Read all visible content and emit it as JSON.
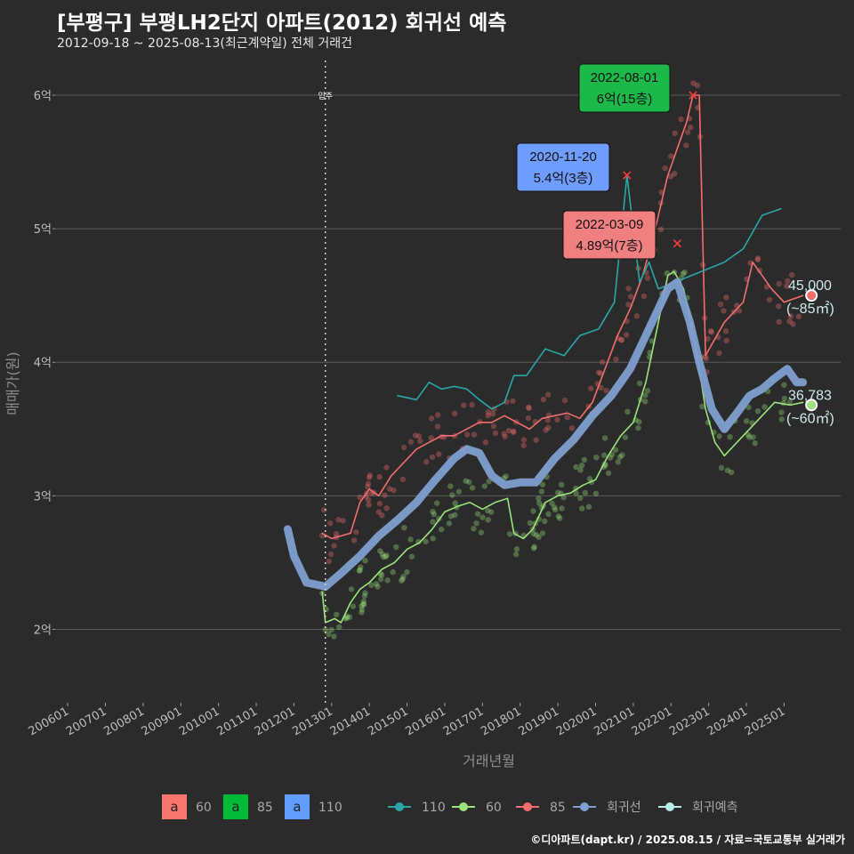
{
  "header": {
    "title": "[부평구] 부평LH2단지 아파트(2012) 회귀선 예측",
    "subtitle": "2012-09-18 ~ 2025-08-13(최근계약일) 전체 거래건"
  },
  "footer": "©디아파트(dapt.kr) / 2025.08.15 / 자료=국토교통부 실거래가",
  "colors": {
    "background": "#2b2b2b",
    "grid": "#5a5a5a",
    "s60": "#9be37a",
    "s85": "#f46d6d",
    "s110": "#2aa6a8",
    "regression": "#7f9fd0",
    "forecast": "#b6ede8",
    "callout85": "#f08080",
    "callout60": "#1db84a",
    "callout110": "#6e9dff"
  },
  "chart_data": {
    "type": "line",
    "xlabel": "거래년월",
    "ylabel": "매매가(원)",
    "x_range": [
      "2005-09",
      "2026-07"
    ],
    "ylim": [
      1.45,
      6.3
    ],
    "y_unit": "억",
    "y_ticks": [
      {
        "value": 2,
        "label": "2억"
      },
      {
        "value": 3,
        "label": "3억"
      },
      {
        "value": 4,
        "label": "4억"
      },
      {
        "value": 5,
        "label": "5억"
      },
      {
        "value": 6,
        "label": "6억"
      }
    ],
    "x_ticks": [
      {
        "value": "2006-01",
        "label": "200601"
      },
      {
        "value": "2007-01",
        "label": "200701"
      },
      {
        "value": "2008-01",
        "label": "200801"
      },
      {
        "value": "2009-01",
        "label": "200901"
      },
      {
        "value": "2010-01",
        "label": "201001"
      },
      {
        "value": "2011-01",
        "label": "201101"
      },
      {
        "value": "2012-01",
        "label": "201201"
      },
      {
        "value": "2013-01",
        "label": "201301"
      },
      {
        "value": "2014-01",
        "label": "201401"
      },
      {
        "value": "2015-01",
        "label": "201501"
      },
      {
        "value": "2016-01",
        "label": "201601"
      },
      {
        "value": "2017-01",
        "label": "201701"
      },
      {
        "value": "2018-01",
        "label": "201801"
      },
      {
        "value": "2019-01",
        "label": "201901"
      },
      {
        "value": "2020-01",
        "label": "202001"
      },
      {
        "value": "2021-01",
        "label": "202101"
      },
      {
        "value": "2022-01",
        "label": "202201"
      },
      {
        "value": "2023-01",
        "label": "202301"
      },
      {
        "value": "2024-01",
        "label": "202401"
      },
      {
        "value": "2025-01",
        "label": "202501"
      }
    ],
    "vline": {
      "x": "2012-11",
      "label": "입주"
    },
    "series": [
      {
        "name": "60",
        "points": [
          [
            "2012-10",
            2.28
          ],
          [
            "2012-11",
            2.05
          ],
          [
            "2013-02",
            2.08
          ],
          [
            "2013-04",
            2.05
          ],
          [
            "2013-07",
            2.2
          ],
          [
            "2013-10",
            2.3
          ],
          [
            "2014-01",
            2.35
          ],
          [
            "2014-05",
            2.45
          ],
          [
            "2014-09",
            2.5
          ],
          [
            "2015-01",
            2.6
          ],
          [
            "2015-05",
            2.65
          ],
          [
            "2015-09",
            2.75
          ],
          [
            "2016-01",
            2.88
          ],
          [
            "2016-05",
            2.92
          ],
          [
            "2016-09",
            2.95
          ],
          [
            "2017-01",
            2.9
          ],
          [
            "2017-05",
            2.95
          ],
          [
            "2017-09",
            2.98
          ],
          [
            "2017-11",
            2.72
          ],
          [
            "2018-02",
            2.68
          ],
          [
            "2018-05",
            2.75
          ],
          [
            "2018-09",
            2.95
          ],
          [
            "2019-01",
            3.0
          ],
          [
            "2019-05",
            3.02
          ],
          [
            "2019-09",
            3.08
          ],
          [
            "2020-01",
            3.12
          ],
          [
            "2020-05",
            3.3
          ],
          [
            "2020-09",
            3.45
          ],
          [
            "2021-01",
            3.55
          ],
          [
            "2021-05",
            3.85
          ],
          [
            "2021-09",
            4.3
          ],
          [
            "2021-12",
            4.65
          ],
          [
            "2022-02",
            4.68
          ],
          [
            "2022-05",
            4.55
          ],
          [
            "2022-09",
            4.1
          ],
          [
            "2022-12",
            3.65
          ],
          [
            "2023-03",
            3.4
          ],
          [
            "2023-06",
            3.3
          ],
          [
            "2023-10",
            3.4
          ],
          [
            "2024-02",
            3.5
          ],
          [
            "2024-06",
            3.6
          ],
          [
            "2024-10",
            3.7
          ],
          [
            "2025-03",
            3.68
          ],
          [
            "2025-07",
            3.7
          ]
        ]
      },
      {
        "name": "85",
        "points": [
          [
            "2012-10",
            2.72
          ],
          [
            "2013-01",
            2.68
          ],
          [
            "2013-04",
            2.7
          ],
          [
            "2013-07",
            2.72
          ],
          [
            "2013-10",
            2.95
          ],
          [
            "2014-01",
            3.05
          ],
          [
            "2014-04",
            3.0
          ],
          [
            "2014-08",
            3.15
          ],
          [
            "2014-12",
            3.25
          ],
          [
            "2015-04",
            3.35
          ],
          [
            "2015-08",
            3.4
          ],
          [
            "2015-12",
            3.45
          ],
          [
            "2016-04",
            3.45
          ],
          [
            "2016-08",
            3.5
          ],
          [
            "2016-12",
            3.55
          ],
          [
            "2017-04",
            3.55
          ],
          [
            "2017-08",
            3.6
          ],
          [
            "2017-12",
            3.55
          ],
          [
            "2018-04",
            3.5
          ],
          [
            "2018-08",
            3.58
          ],
          [
            "2018-12",
            3.6
          ],
          [
            "2019-04",
            3.62
          ],
          [
            "2019-08",
            3.58
          ],
          [
            "2019-12",
            3.7
          ],
          [
            "2020-04",
            3.95
          ],
          [
            "2020-08",
            4.2
          ],
          [
            "2020-12",
            4.4
          ],
          [
            "2021-04",
            4.65
          ],
          [
            "2021-08",
            5.0
          ],
          [
            "2021-12",
            5.4
          ],
          [
            "2022-03",
            5.6
          ],
          [
            "2022-06",
            5.8
          ],
          [
            "2022-08",
            6.0
          ],
          [
            "2022-10",
            6.0
          ],
          [
            "2022-12",
            4.05
          ],
          [
            "2023-06",
            4.3
          ],
          [
            "2023-12",
            4.45
          ],
          [
            "2024-03",
            4.75
          ],
          [
            "2024-09",
            4.55
          ],
          [
            "2025-01",
            4.45
          ],
          [
            "2025-07",
            4.5
          ]
        ]
      },
      {
        "name": "110",
        "points": [
          [
            "2014-10",
            3.75
          ],
          [
            "2015-04",
            3.72
          ],
          [
            "2015-08",
            3.85
          ],
          [
            "2015-12",
            3.8
          ],
          [
            "2016-04",
            3.82
          ],
          [
            "2016-08",
            3.8
          ],
          [
            "2016-12",
            3.72
          ],
          [
            "2017-04",
            3.65
          ],
          [
            "2017-08",
            3.7
          ],
          [
            "2017-11",
            3.9
          ],
          [
            "2018-03",
            3.9
          ],
          [
            "2018-09",
            4.1
          ],
          [
            "2019-03",
            4.05
          ],
          [
            "2019-08",
            4.2
          ],
          [
            "2020-02",
            4.25
          ],
          [
            "2020-07",
            4.45
          ],
          [
            "2020-11",
            5.4
          ],
          [
            "2021-03",
            4.6
          ],
          [
            "2021-06",
            4.75
          ],
          [
            "2021-09",
            4.55
          ],
          [
            "2023-06",
            4.75
          ],
          [
            "2023-12",
            4.85
          ],
          [
            "2024-06",
            5.1
          ],
          [
            "2024-12",
            5.15
          ]
        ]
      },
      {
        "name": "회귀선",
        "points": [
          [
            "2011-11",
            2.75
          ],
          [
            "2012-01",
            2.55
          ],
          [
            "2012-05",
            2.35
          ],
          [
            "2012-11",
            2.32
          ],
          [
            "2013-04",
            2.42
          ],
          [
            "2013-10",
            2.55
          ],
          [
            "2014-04",
            2.7
          ],
          [
            "2014-10",
            2.82
          ],
          [
            "2015-04",
            2.95
          ],
          [
            "2015-10",
            3.12
          ],
          [
            "2016-04",
            3.28
          ],
          [
            "2016-08",
            3.35
          ],
          [
            "2016-12",
            3.32
          ],
          [
            "2017-04",
            3.15
          ],
          [
            "2017-08",
            3.08
          ],
          [
            "2018-01",
            3.1
          ],
          [
            "2018-06",
            3.1
          ],
          [
            "2018-12",
            3.28
          ],
          [
            "2019-06",
            3.42
          ],
          [
            "2019-12",
            3.6
          ],
          [
            "2020-06",
            3.75
          ],
          [
            "2020-12",
            3.95
          ],
          [
            "2021-06",
            4.25
          ],
          [
            "2021-12",
            4.55
          ],
          [
            "2022-03",
            4.6
          ],
          [
            "2022-07",
            4.3
          ],
          [
            "2022-10",
            4.0
          ],
          [
            "2023-02",
            3.65
          ],
          [
            "2023-06",
            3.5
          ],
          [
            "2023-10",
            3.62
          ],
          [
            "2024-02",
            3.75
          ],
          [
            "2024-06",
            3.8
          ],
          [
            "2024-10",
            3.88
          ],
          [
            "2025-02",
            3.95
          ],
          [
            "2025-05",
            3.85
          ],
          [
            "2025-07",
            3.85
          ]
        ]
      }
    ],
    "callouts": [
      {
        "series": "85",
        "date_label": "2022-08-01",
        "price_label": "6억(15층)",
        "x": "2022-08",
        "y": 6.0
      },
      {
        "series": "110",
        "date_label": "2020-11-20",
        "price_label": "5.4억(3층)",
        "x": "2020-11",
        "y": 5.4
      },
      {
        "series": "85",
        "date_label": "2022-03-09",
        "price_label": "4.89억(7층)",
        "x": "2022-03",
        "y": 4.89
      }
    ],
    "end_labels": [
      {
        "series": "85",
        "value_label": "45,000",
        "area_label": "(~85㎡)",
        "x": "2025-08",
        "y": 4.5
      },
      {
        "series": "60",
        "value_label": "36,783",
        "area_label": "(~60㎡)",
        "x": "2025-08",
        "y": 3.68
      }
    ],
    "legend": {
      "position": "bottom",
      "fill_items": [
        {
          "key": "a",
          "label": "60",
          "color": "#f8766d"
        },
        {
          "key": "a",
          "label": "85",
          "color": "#00ba38"
        },
        {
          "key": "a",
          "label": "110",
          "color": "#619cff"
        }
      ],
      "line_items": [
        {
          "label": "110",
          "color": "#2aa6a8"
        },
        {
          "label": "60",
          "color": "#9be37a"
        },
        {
          "label": "85",
          "color": "#f46d6d"
        },
        {
          "label": "회귀선",
          "color": "#7f9fd0"
        },
        {
          "label": "회귀예측",
          "color": "#b6ede8"
        }
      ]
    }
  }
}
